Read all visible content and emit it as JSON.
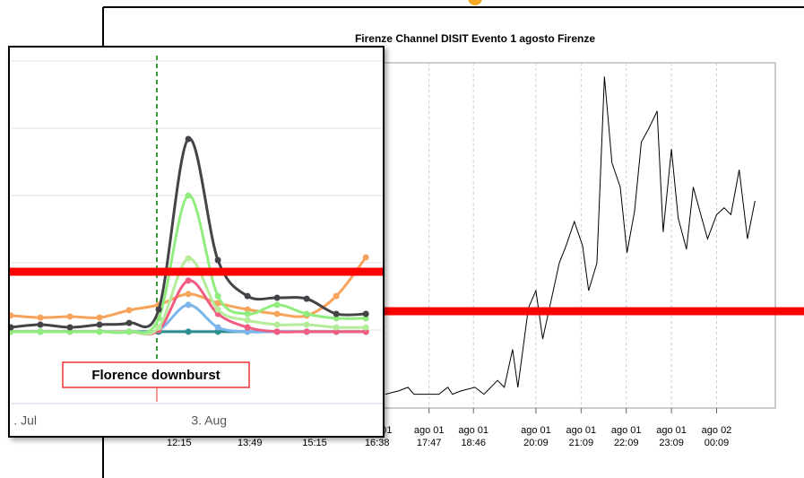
{
  "chart_data": [
    {
      "type": "line",
      "title": "Firenze Channel DISIT Evento 1 agosto Firenze",
      "color": "#000000",
      "x": [
        1009,
        1027,
        1039,
        1047,
        1062,
        1080,
        1092,
        1098,
        1110,
        1128,
        1140,
        1158,
        1167,
        1178,
        1185,
        1199,
        1209,
        1218,
        1230,
        1240,
        1249,
        1260,
        1271,
        1279,
        1290,
        1300,
        1310,
        1321,
        1330,
        1340,
        1349,
        1359,
        1370,
        1378,
        1389,
        1398,
        1409,
        1418,
        1428,
        1437,
        1449,
        1459,
        1468,
        1479,
        1490,
        1500
      ],
      "values": [
        4,
        5,
        6,
        4,
        4,
        4,
        6,
        4,
        5,
        6,
        4,
        8,
        6,
        17,
        6,
        29,
        34,
        20,
        32,
        42,
        47,
        54,
        47,
        34,
        42,
        96,
        71,
        64,
        45,
        57,
        77,
        81,
        86,
        51,
        75,
        55,
        46,
        64,
        56,
        49,
        56,
        58,
        56,
        69,
        49,
        60
      ],
      "xlim": [
        634,
        1527
      ],
      "ylim": [
        0,
        100
      ],
      "grid": true,
      "xticks": [
        {
          "value": 735,
          "label": "12:15",
          "date": "ago 01"
        },
        {
          "value": 829,
          "label": "13:49",
          "date": "ago 01"
        },
        {
          "value": 915,
          "label": "15:15",
          "date": "ago 01"
        },
        {
          "value": 998,
          "label": "16:38",
          "date": "ago 01"
        },
        {
          "value": 1067,
          "label": "17:47",
          "date": "ago 01"
        },
        {
          "value": 1126,
          "label": "18:46",
          "date": "ago 01"
        },
        {
          "value": 1209,
          "label": "20:09",
          "date": "ago 01"
        },
        {
          "value": 1269,
          "label": "21:09",
          "date": "ago 01"
        },
        {
          "value": 1329,
          "label": "22:09",
          "date": "ago 01"
        },
        {
          "value": 1389,
          "label": "23:09",
          "date": "ago 01"
        },
        {
          "value": 1449,
          "label": "00:09",
          "date": "ago 02"
        }
      ]
    },
    {
      "type": "line",
      "annotation": "Florence downburst",
      "x": [
        0,
        1,
        2,
        3,
        4,
        5,
        6,
        7,
        8,
        9,
        10,
        11,
        12
      ],
      "xlim": [
        0,
        12.6
      ],
      "ylim": [
        0,
        100
      ],
      "yticks": [
        20,
        40,
        60,
        80,
        100
      ],
      "grid": true,
      "xticks": [
        {
          "value": 0.1,
          "label": ". Jul"
        },
        {
          "value": 6.7,
          "label": "3. Aug"
        }
      ],
      "series": [
        {
          "color": "#f7a35c",
          "values": [
            24.3,
            23.7,
            24.0,
            23.7,
            25.9,
            27.5,
            30.7,
            28.0,
            26.1,
            24.8,
            24.3,
            30.1,
            41.6
          ]
        },
        {
          "color": "#2b908f",
          "values": [
            19.5,
            19.5,
            19.5,
            19.5,
            19.5,
            19.5,
            19.5,
            19.5,
            19.5,
            19.5,
            19.5,
            19.5,
            19.5
          ]
        },
        {
          "color": "#7cb5ec",
          "values": [
            19.5,
            19.5,
            19.5,
            19.5,
            19.5,
            20.0,
            27.5,
            20.8,
            19.5,
            19.5,
            19.5,
            19.5,
            19.5
          ]
        },
        {
          "color": "#f15c80",
          "values": [
            19.5,
            19.5,
            19.5,
            19.5,
            19.5,
            20.0,
            34.7,
            24.8,
            20.8,
            19.5,
            19.5,
            19.5,
            19.5
          ]
        },
        {
          "color": "#b4ec9a",
          "values": [
            19.5,
            19.5,
            19.5,
            19.5,
            19.5,
            20.8,
            41.3,
            26.1,
            22.9,
            21.6,
            21.6,
            20.8,
            20.8
          ]
        },
        {
          "color": "#90ed7d",
          "values": [
            19.5,
            19.5,
            19.5,
            19.5,
            19.5,
            23.5,
            60.0,
            30.1,
            24.8,
            27.5,
            24.8,
            23.5,
            23.5
          ]
        },
        {
          "color": "#434348",
          "values": [
            20.8,
            21.6,
            20.8,
            21.6,
            22.1,
            26.1,
            76.8,
            40.8,
            30.1,
            29.6,
            29.3,
            24.8,
            24.8
          ]
        }
      ]
    }
  ]
}
